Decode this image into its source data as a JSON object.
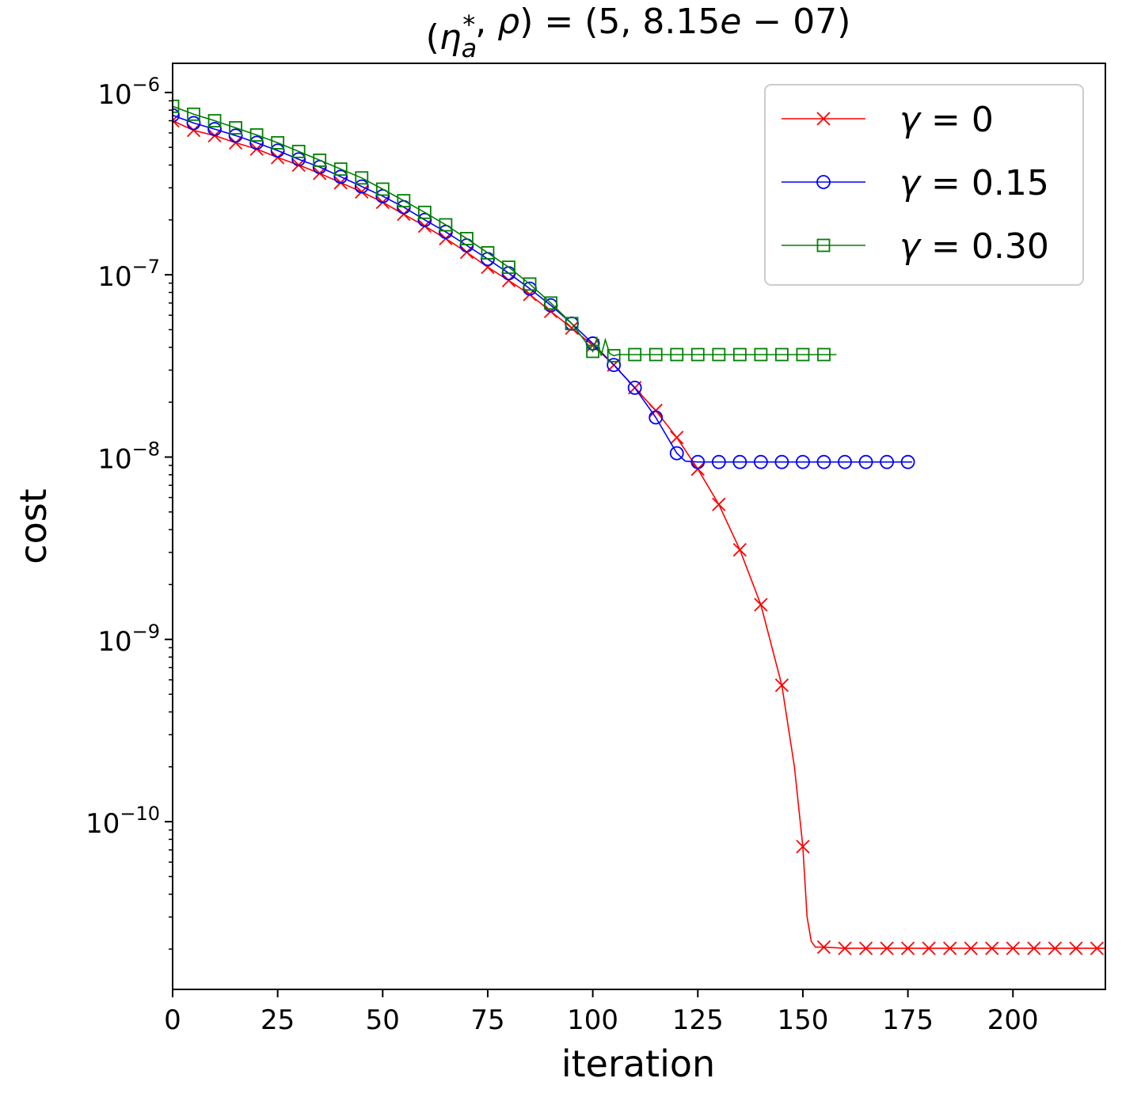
{
  "chart_data": {
    "type": "line",
    "title": "(η_a*, ρ) = (5, 8.15e−07)",
    "xlabel": "iteration",
    "ylabel": "cost",
    "xlim": [
      0,
      222
    ],
    "ylim_log10": [
      -10.92,
      -5.84
    ],
    "yscale": "log",
    "x_ticks": [
      0,
      25,
      50,
      75,
      100,
      125,
      150,
      175,
      200
    ],
    "x_tick_labels": [
      "0",
      "25",
      "50",
      "75",
      "100",
      "125",
      "150",
      "175",
      "200"
    ],
    "y_ticks_log10": [
      -6,
      -7,
      -8,
      -9,
      -10
    ],
    "y_tick_labels": [
      {
        "base": "10",
        "exp": "−6"
      },
      {
        "base": "10",
        "exp": "−7"
      },
      {
        "base": "10",
        "exp": "−8"
      },
      {
        "base": "10",
        "exp": "−9"
      },
      {
        "base": "10",
        "exp": "−10"
      }
    ],
    "grid": false,
    "legend_position": "top-right",
    "series": [
      {
        "name": "γ = 0",
        "marker": "x",
        "color": "#ff0000",
        "x": [
          0,
          5,
          10,
          15,
          20,
          25,
          30,
          35,
          40,
          45,
          50,
          55,
          60,
          65,
          70,
          75,
          80,
          85,
          90,
          95,
          100,
          105,
          110,
          115,
          120,
          125,
          130,
          135,
          140,
          145,
          148,
          150,
          151,
          152,
          153,
          155,
          160,
          165,
          170,
          175,
          180,
          185,
          190,
          195,
          200,
          205,
          210,
          215,
          222
        ],
        "y": [
          7e-07,
          6.2e-07,
          5.8e-07,
          5.3e-07,
          4.9e-07,
          4.4e-07,
          4e-07,
          3.6e-07,
          3.2e-07,
          2.85e-07,
          2.5e-07,
          2.15e-07,
          1.85e-07,
          1.58e-07,
          1.33e-07,
          1.1e-07,
          9.3e-08,
          7.8e-08,
          6.3e-08,
          5.1e-08,
          4.1e-08,
          3.2e-08,
          2.4e-08,
          1.8e-08,
          1.28e-08,
          8.6e-09,
          5.5e-09,
          3.1e-09,
          1.55e-09,
          5.6e-10,
          2e-10,
          7.3e-11,
          3e-11,
          2.2e-11,
          2.05e-11,
          2.05e-11,
          2.02e-11,
          2.02e-11,
          2.02e-11,
          2.02e-11,
          2.02e-11,
          2.02e-11,
          2.02e-11,
          2.02e-11,
          2.02e-11,
          2.02e-11,
          2.02e-11,
          2.02e-11,
          2.02e-11
        ],
        "marker_x": [
          0,
          5,
          10,
          15,
          20,
          25,
          30,
          35,
          40,
          45,
          50,
          55,
          60,
          65,
          70,
          75,
          80,
          85,
          90,
          95,
          100,
          105,
          110,
          115,
          120,
          125,
          130,
          135,
          140,
          145,
          150,
          155,
          160,
          165,
          170,
          175,
          180,
          185,
          190,
          195,
          200,
          205,
          210,
          215,
          220
        ]
      },
      {
        "name": "γ = 0.15",
        "marker": "o",
        "color": "#0000ff",
        "x": [
          0,
          5,
          10,
          15,
          20,
          25,
          30,
          35,
          40,
          45,
          50,
          55,
          60,
          65,
          70,
          75,
          80,
          85,
          90,
          95,
          100,
          105,
          110,
          115,
          120,
          122,
          125,
          130,
          135,
          140,
          145,
          150,
          155,
          160,
          165,
          170,
          176
        ],
        "y": [
          7.5e-07,
          6.8e-07,
          6.3e-07,
          5.8e-07,
          5.3e-07,
          4.8e-07,
          4.3e-07,
          3.9e-07,
          3.45e-07,
          3.05e-07,
          2.7e-07,
          2.35e-07,
          2e-07,
          1.72e-07,
          1.45e-07,
          1.22e-07,
          1.02e-07,
          8.4e-08,
          6.8e-08,
          5.4e-08,
          4.2e-08,
          3.2e-08,
          2.4e-08,
          1.65e-08,
          1.05e-08,
          9.5e-09,
          9.4e-09,
          9.4e-09,
          9.4e-09,
          9.4e-09,
          9.4e-09,
          9.4e-09,
          9.4e-09,
          9.4e-09,
          9.4e-09,
          9.4e-09,
          9.4e-09
        ],
        "marker_x": [
          0,
          5,
          10,
          15,
          20,
          25,
          30,
          35,
          40,
          45,
          50,
          55,
          60,
          65,
          70,
          75,
          80,
          85,
          90,
          95,
          100,
          105,
          110,
          115,
          120,
          125,
          130,
          135,
          140,
          145,
          150,
          155,
          160,
          165,
          170,
          175
        ]
      },
      {
        "name": "γ = 0.30",
        "marker": "s",
        "color": "#008000",
        "x": [
          0,
          5,
          10,
          15,
          20,
          25,
          30,
          35,
          40,
          45,
          50,
          55,
          60,
          65,
          70,
          75,
          80,
          85,
          90,
          95,
          100,
          101,
          102,
          103,
          104,
          105,
          106,
          110,
          115,
          120,
          125,
          130,
          135,
          140,
          145,
          150,
          155,
          158
        ],
        "y": [
          8.4e-07,
          7.6e-07,
          7e-07,
          6.4e-07,
          5.85e-07,
          5.3e-07,
          4.75e-07,
          4.25e-07,
          3.8e-07,
          3.4e-07,
          2.95e-07,
          2.55e-07,
          2.2e-07,
          1.88e-07,
          1.58e-07,
          1.32e-07,
          1.1e-07,
          8.9e-08,
          7e-08,
          5.4e-08,
          3.8e-08,
          4.5e-08,
          3.6e-08,
          4.4e-08,
          3.7e-08,
          3.6e-08,
          3.65e-08,
          3.65e-08,
          3.65e-08,
          3.65e-08,
          3.65e-08,
          3.65e-08,
          3.65e-08,
          3.65e-08,
          3.65e-08,
          3.65e-08,
          3.65e-08,
          3.65e-08
        ],
        "marker_x": [
          0,
          5,
          10,
          15,
          20,
          25,
          30,
          35,
          40,
          45,
          50,
          55,
          60,
          65,
          70,
          75,
          80,
          85,
          90,
          95,
          100,
          105,
          110,
          115,
          120,
          125,
          130,
          135,
          140,
          145,
          150,
          155
        ]
      }
    ]
  }
}
